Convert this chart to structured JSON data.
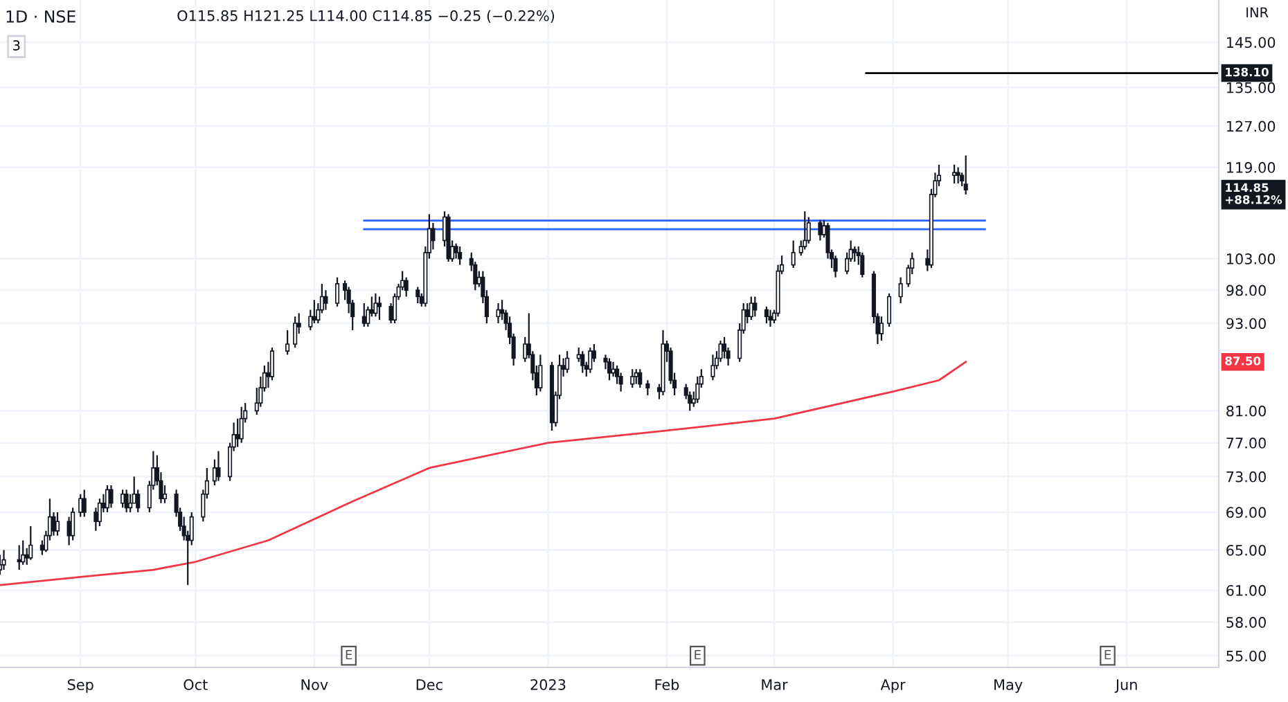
{
  "chart_data": {
    "type": "candlestick",
    "title": "1D · NSE",
    "subtitle": "O115.85 H121.25 L114.00 C114.85 −0.25 (−0.22%)",
    "color": "#131722",
    "log": true,
    "grid": true,
    "legend": false,
    "x": [
      "2022-08-11",
      "2022-08-12",
      "2022-08-16",
      "2022-08-17",
      "2022-08-18",
      "2022-08-19",
      "2022-08-22",
      "2022-08-23",
      "2022-08-24",
      "2022-08-25",
      "2022-08-26",
      "2022-08-29",
      "2022-08-30",
      "2022-09-01",
      "2022-09-02",
      "2022-09-05",
      "2022-09-06",
      "2022-09-07",
      "2022-09-08",
      "2022-09-09",
      "2022-09-12",
      "2022-09-13",
      "2022-09-14",
      "2022-09-15",
      "2022-09-16",
      "2022-09-19",
      "2022-09-20",
      "2022-09-21",
      "2022-09-22",
      "2022-09-23",
      "2022-09-26",
      "2022-09-27",
      "2022-09-28",
      "2022-09-29",
      "2022-09-30",
      "2022-10-03",
      "2022-10-04",
      "2022-10-06",
      "2022-10-07",
      "2022-10-10",
      "2022-10-11",
      "2022-10-12",
      "2022-10-13",
      "2022-10-14",
      "2022-10-17",
      "2022-10-18",
      "2022-10-19",
      "2022-10-20",
      "2022-10-21",
      "2022-10-25",
      "2022-10-27",
      "2022-10-28",
      "2022-10-31",
      "2022-11-01",
      "2022-11-02",
      "2022-11-03",
      "2022-11-04",
      "2022-11-07",
      "2022-11-09",
      "2022-11-10",
      "2022-11-11",
      "2022-11-14",
      "2022-11-15",
      "2022-11-16",
      "2022-11-17",
      "2022-11-18",
      "2022-11-21",
      "2022-11-22",
      "2022-11-23",
      "2022-11-24",
      "2022-11-25",
      "2022-11-28",
      "2022-11-29",
      "2022-11-30",
      "2022-12-01",
      "2022-12-02",
      "2022-12-05",
      "2022-12-06",
      "2022-12-07",
      "2022-12-08",
      "2022-12-09",
      "2022-12-12",
      "2022-12-13",
      "2022-12-14",
      "2022-12-15",
      "2022-12-16",
      "2022-12-19",
      "2022-12-20",
      "2022-12-21",
      "2022-12-22",
      "2022-12-23",
      "2022-12-26",
      "2022-12-27",
      "2022-12-28",
      "2022-12-29",
      "2022-12-30",
      "2023-01-02",
      "2023-01-03",
      "2023-01-04",
      "2023-01-05",
      "2023-01-06",
      "2023-01-09",
      "2023-01-10",
      "2023-01-11",
      "2023-01-12",
      "2023-01-13",
      "2023-01-16",
      "2023-01-17",
      "2023-01-18",
      "2023-01-19",
      "2023-01-20",
      "2023-01-23",
      "2023-01-24",
      "2023-01-25",
      "2023-01-27",
      "2023-01-30",
      "2023-01-31",
      "2023-02-01",
      "2023-02-02",
      "2023-02-03",
      "2023-02-06",
      "2023-02-07",
      "2023-02-08",
      "2023-02-09",
      "2023-02-10",
      "2023-02-13",
      "2023-02-14",
      "2023-02-15",
      "2023-02-16",
      "2023-02-17",
      "2023-02-20",
      "2023-02-21",
      "2023-02-22",
      "2023-02-23",
      "2023-02-24",
      "2023-02-27",
      "2023-02-28",
      "2023-03-01",
      "2023-03-02",
      "2023-03-03",
      "2023-03-06",
      "2023-03-08",
      "2023-03-09",
      "2023-03-10",
      "2023-03-13",
      "2023-03-14",
      "2023-03-15",
      "2023-03-16",
      "2023-03-17",
      "2023-03-20",
      "2023-03-21",
      "2023-03-22",
      "2023-03-23",
      "2023-03-24",
      "2023-03-27",
      "2023-03-28",
      "2023-03-29",
      "2023-03-31",
      "2023-04-03",
      "2023-04-05",
      "2023-04-06",
      "2023-04-10",
      "2023-04-11",
      "2023-04-12",
      "2023-04-13",
      "2023-04-17",
      "2023-04-18",
      "2023-04-19",
      "2023-04-20"
    ],
    "ohlc": [
      [
        63,
        64.5,
        62.5,
        63.5
      ],
      [
        63.5,
        65,
        63,
        64
      ],
      [
        64,
        65.5,
        63,
        63.8
      ],
      [
        63.8,
        66,
        63.5,
        64.5
      ],
      [
        64.5,
        65.2,
        63.5,
        64.2
      ],
      [
        64.2,
        67.5,
        64,
        65.5
      ],
      [
        65.5,
        66,
        64.5,
        65
      ],
      [
        65,
        67,
        64.8,
        66.5
      ],
      [
        66.5,
        70.5,
        66,
        68.5
      ],
      [
        68.5,
        69,
        66.5,
        67
      ],
      [
        67,
        69,
        66.5,
        68
      ],
      [
        68,
        68.5,
        65.5,
        66.5
      ],
      [
        66.5,
        69.5,
        66,
        69
      ],
      [
        69,
        71,
        68.5,
        70.5
      ],
      [
        70.5,
        71.5,
        68.5,
        69
      ],
      [
        69,
        69.5,
        67,
        68
      ],
      [
        68,
        70.5,
        67.5,
        70
      ],
      [
        70,
        71,
        69,
        69.5
      ],
      [
        69.5,
        72,
        69,
        71.5
      ],
      [
        71.5,
        72,
        69.5,
        70
      ],
      [
        70,
        71.5,
        69.5,
        71
      ],
      [
        71,
        71.5,
        69,
        69.5
      ],
      [
        69.5,
        71,
        69,
        70
      ],
      [
        70,
        73,
        70,
        71
      ],
      [
        71,
        71.5,
        69,
        69.5
      ],
      [
        69.5,
        72.5,
        69,
        72
      ],
      [
        72,
        76,
        71.5,
        74
      ],
      [
        74,
        75.5,
        72,
        72.5
      ],
      [
        72.5,
        73.5,
        70,
        70.5
      ],
      [
        70.5,
        72,
        70,
        71
      ],
      [
        71,
        71.5,
        68.5,
        69
      ],
      [
        69,
        69.5,
        67,
        67.5
      ],
      [
        67.5,
        68.5,
        66,
        66.5
      ],
      [
        66.5,
        67,
        61.5,
        66
      ],
      [
        66,
        69,
        65.5,
        68.5
      ],
      [
        68.5,
        71.5,
        68,
        71
      ],
      [
        71,
        74,
        70.5,
        72.5
      ],
      [
        72.5,
        75,
        72,
        74
      ],
      [
        74,
        76,
        72.5,
        73
      ],
      [
        73,
        77,
        72.5,
        76.5
      ],
      [
        76.5,
        79.5,
        76,
        78
      ],
      [
        78,
        80,
        76.5,
        77.5
      ],
      [
        77.5,
        81.5,
        77,
        80
      ],
      [
        80,
        82,
        79.5,
        81
      ],
      [
        81,
        84,
        80.5,
        82
      ],
      [
        82,
        85.5,
        81.5,
        84
      ],
      [
        84,
        87,
        83.5,
        86
      ],
      [
        86,
        87.5,
        84,
        85.5
      ],
      [
        85.5,
        89.5,
        85,
        89
      ],
      [
        89,
        92,
        88.5,
        90
      ],
      [
        90,
        94,
        89.5,
        93
      ],
      [
        93,
        94.5,
        91.5,
        92.5
      ],
      [
        92.5,
        95,
        92,
        94
      ],
      [
        94,
        96.5,
        93,
        93.5
      ],
      [
        93.5,
        96,
        93,
        95
      ],
      [
        95,
        99,
        94.5,
        97
      ],
      [
        97,
        98,
        95,
        96
      ],
      [
        96,
        100,
        95.5,
        99
      ],
      [
        99,
        99.5,
        96.5,
        98
      ],
      [
        98,
        98.5,
        94.5,
        96
      ],
      [
        96,
        96.5,
        92,
        94
      ],
      [
        94,
        96,
        92.5,
        93
      ],
      [
        93,
        95.5,
        92.5,
        95
      ],
      [
        95,
        97,
        94,
        94.5
      ],
      [
        94.5,
        97.5,
        94,
        96
      ],
      [
        96,
        97,
        93.5,
        95.5
      ],
      [
        95.5,
        96,
        93,
        93.5
      ],
      [
        93.5,
        97.5,
        93,
        97
      ],
      [
        97,
        99,
        96.5,
        98.5
      ],
      [
        98.5,
        101,
        98,
        99.5
      ],
      [
        99.5,
        100,
        97,
        98
      ],
      [
        98,
        98.5,
        96,
        97
      ],
      [
        97,
        97.5,
        95.5,
        96
      ],
      [
        96,
        105,
        95.5,
        104
      ],
      [
        104,
        110.5,
        103,
        108
      ],
      [
        108,
        109,
        104.5,
        106
      ],
      [
        106,
        111,
        105,
        110
      ],
      [
        110,
        110.5,
        102.5,
        103
      ],
      [
        103,
        106,
        102.5,
        105
      ],
      [
        105,
        105.5,
        103,
        104
      ],
      [
        104,
        105,
        102,
        103
      ],
      [
        103,
        104,
        101,
        102
      ],
      [
        102,
        102.5,
        98,
        99
      ],
      [
        99,
        101,
        98.5,
        100
      ],
      [
        100,
        101,
        96,
        97
      ],
      [
        97,
        98,
        93,
        94
      ],
      [
        94,
        96,
        93,
        95
      ],
      [
        95,
        96.5,
        93.5,
        94.5
      ],
      [
        94.5,
        95,
        92,
        93
      ],
      [
        93,
        94,
        90,
        91
      ],
      [
        91,
        91.5,
        87,
        88
      ],
      [
        88,
        91,
        87.5,
        90
      ],
      [
        90,
        94.5,
        88,
        88.5
      ],
      [
        88.5,
        89,
        85,
        86
      ],
      [
        86,
        87,
        83,
        84
      ],
      [
        84,
        88.5,
        83.5,
        87
      ],
      [
        87,
        87.5,
        78.5,
        79.5
      ],
      [
        79.5,
        83.5,
        79,
        83
      ],
      [
        83,
        88.5,
        82.5,
        87
      ],
      [
        87,
        88,
        85.5,
        86.5
      ],
      [
        86.5,
        89,
        86,
        88
      ],
      [
        88,
        89.5,
        87.5,
        88.5
      ],
      [
        88.5,
        89,
        86,
        87
      ],
      [
        87,
        87.5,
        85.5,
        86.5
      ],
      [
        86.5,
        89.5,
        86,
        89
      ],
      [
        89,
        90,
        87.5,
        88
      ],
      [
        88,
        88.5,
        86.5,
        87.5
      ],
      [
        87.5,
        88,
        85,
        86
      ],
      [
        86,
        87.5,
        85.5,
        86.5
      ],
      [
        86.5,
        87,
        84.5,
        85.5
      ],
      [
        85.5,
        86,
        83.5,
        84.5
      ],
      [
        84.5,
        86.5,
        84,
        85.5
      ],
      [
        85.5,
        86.5,
        84.5,
        86
      ],
      [
        86,
        86.5,
        84,
        84.5
      ],
      [
        84.5,
        85,
        83,
        84
      ],
      [
        84,
        84.5,
        82.5,
        83.5
      ],
      [
        83.5,
        92,
        83,
        90
      ],
      [
        90,
        90.5,
        87.5,
        89
      ],
      [
        89,
        89.5,
        84.5,
        85
      ],
      [
        85,
        86,
        83,
        84
      ],
      [
        84,
        84.5,
        82.5,
        83
      ],
      [
        83,
        83.5,
        81,
        82
      ],
      [
        82,
        83.5,
        81.5,
        82.5
      ],
      [
        82.5,
        85.5,
        82,
        84.5
      ],
      [
        84.5,
        86.5,
        84,
        85.5
      ],
      [
        85.5,
        88.5,
        85,
        87
      ],
      [
        87,
        89,
        86.5,
        88
      ],
      [
        88,
        90.5,
        87.5,
        90
      ],
      [
        90,
        91,
        88,
        89
      ],
      [
        89,
        89.5,
        87,
        88
      ],
      [
        88,
        93,
        87.5,
        92
      ],
      [
        92,
        96,
        91.5,
        95
      ],
      [
        95,
        96,
        93,
        94
      ],
      [
        94,
        97,
        93.5,
        96
      ],
      [
        96,
        97,
        94,
        95
      ],
      [
        95,
        95.5,
        93,
        94
      ],
      [
        94,
        95,
        92.5,
        93.5
      ],
      [
        93.5,
        95,
        93,
        94.5
      ],
      [
        94.5,
        102,
        94,
        101
      ],
      [
        101,
        103.5,
        100.5,
        102
      ],
      [
        102,
        106,
        101.5,
        104
      ],
      [
        104,
        106,
        103.5,
        105
      ],
      [
        105,
        111,
        104.5,
        106
      ],
      [
        106,
        110,
        105.5,
        109
      ],
      [
        109,
        109.5,
        106,
        107
      ],
      [
        107,
        109.5,
        106.5,
        108.5
      ],
      [
        108.5,
        109,
        103,
        104
      ],
      [
        104,
        104.5,
        101.5,
        103
      ],
      [
        103,
        103.5,
        100,
        101
      ],
      [
        101,
        104,
        100.5,
        103
      ],
      [
        103,
        106,
        102.5,
        104.5
      ],
      [
        104.5,
        105,
        102.5,
        104
      ],
      [
        104,
        105,
        102,
        103.5
      ],
      [
        103.5,
        104,
        100,
        100.5
      ],
      [
        100.5,
        101,
        93,
        94
      ],
      [
        94,
        94.5,
        90,
        91.5
      ],
      [
        91.5,
        94,
        90.5,
        93
      ],
      [
        93,
        97.5,
        92.5,
        97
      ],
      [
        97,
        100,
        96,
        99
      ],
      [
        99,
        102,
        98.5,
        101.5
      ],
      [
        101.5,
        104,
        100.5,
        103
      ],
      [
        103,
        104.5,
        101,
        102
      ],
      [
        102,
        115,
        101.5,
        114
      ],
      [
        114,
        118,
        113.5,
        116.5
      ],
      [
        116.5,
        119.5,
        115.5,
        117.5
      ],
      [
        117.5,
        119.5,
        116,
        118
      ],
      [
        118,
        119,
        116,
        117.5
      ],
      [
        117.5,
        118,
        115.5,
        116.5
      ],
      [
        115.85,
        121.25,
        114,
        114.85
      ]
    ],
    "series": [
      {
        "type": "line",
        "color": "#f23645",
        "x": [
          "2022-08-11",
          "2022-09-01",
          "2022-09-20",
          "2022-10-01",
          "2022-10-20",
          "2022-11-10",
          "2022-12-01",
          "2023-01-01",
          "2023-02-01",
          "2023-03-01",
          "2023-04-01",
          "2023-04-13",
          "2023-04-20"
        ],
        "values": [
          61.5,
          62.3,
          63,
          63.8,
          66,
          70,
          74,
          77,
          78.5,
          80,
          83.5,
          85,
          87.5
        ]
      },
      {
        "type": "line",
        "color": "#2962ff",
        "x": [
          "2022-11-14",
          "2023-04-25"
        ],
        "values": [
          109.4,
          109.4
        ]
      },
      {
        "type": "line",
        "color": "#2962ff",
        "x": [
          "2022-11-14",
          "2023-04-25"
        ],
        "values": [
          107.9,
          107.9
        ]
      },
      {
        "type": "line",
        "color": "#000000",
        "x": [
          "2023-03-25",
          "2023-06-25"
        ],
        "values": [
          138.1,
          138.1
        ]
      }
    ],
    "xlim": [
      "2022-08-11",
      "2023-06-25"
    ],
    "xticks": [
      {
        "value": "2022-09-01",
        "label": "Sep"
      },
      {
        "value": "2022-10-01",
        "label": "Oct"
      },
      {
        "value": "2022-11-01",
        "label": "Nov"
      },
      {
        "value": "2022-12-01",
        "label": "Dec"
      },
      {
        "value": "2023-01-01",
        "label": "2023"
      },
      {
        "value": "2023-02-01",
        "label": "Feb"
      },
      {
        "value": "2023-03-01",
        "label": "Mar"
      },
      {
        "value": "2023-04-01",
        "label": "Apr"
      },
      {
        "value": "2023-05-01",
        "label": "May"
      },
      {
        "value": "2023-06-01",
        "label": "Jun"
      }
    ],
    "ylim": [
      54,
      155
    ],
    "yticks": [
      {
        "value": 55,
        "label": "55.00"
      },
      {
        "value": 58,
        "label": "58.00"
      },
      {
        "value": 61,
        "label": "61.00"
      },
      {
        "value": 65,
        "label": "65.00"
      },
      {
        "value": 69,
        "label": "69.00"
      },
      {
        "value": 73,
        "label": "73.00"
      },
      {
        "value": 77,
        "label": "77.00"
      },
      {
        "value": 81,
        "label": "81.00"
      },
      {
        "value": 93,
        "label": "93.00"
      },
      {
        "value": 98,
        "label": "98.00"
      },
      {
        "value": 103,
        "label": "103.00"
      },
      {
        "value": 119,
        "label": "119.00"
      },
      {
        "value": 127,
        "label": "127.00"
      },
      {
        "value": 135,
        "label": "135.00"
      },
      {
        "value": 145,
        "label": "145.00"
      }
    ],
    "annotations": [
      "138.10",
      "114.85\n+88.12%",
      "87.50",
      "INR",
      "3",
      {
        "text": "E",
        "x": "2022-11-10",
        "y": 55
      },
      {
        "text": "E",
        "x": "2023-02-09",
        "y": 55
      },
      {
        "text": "E",
        "x": "2023-05-27",
        "y": 55
      }
    ]
  }
}
